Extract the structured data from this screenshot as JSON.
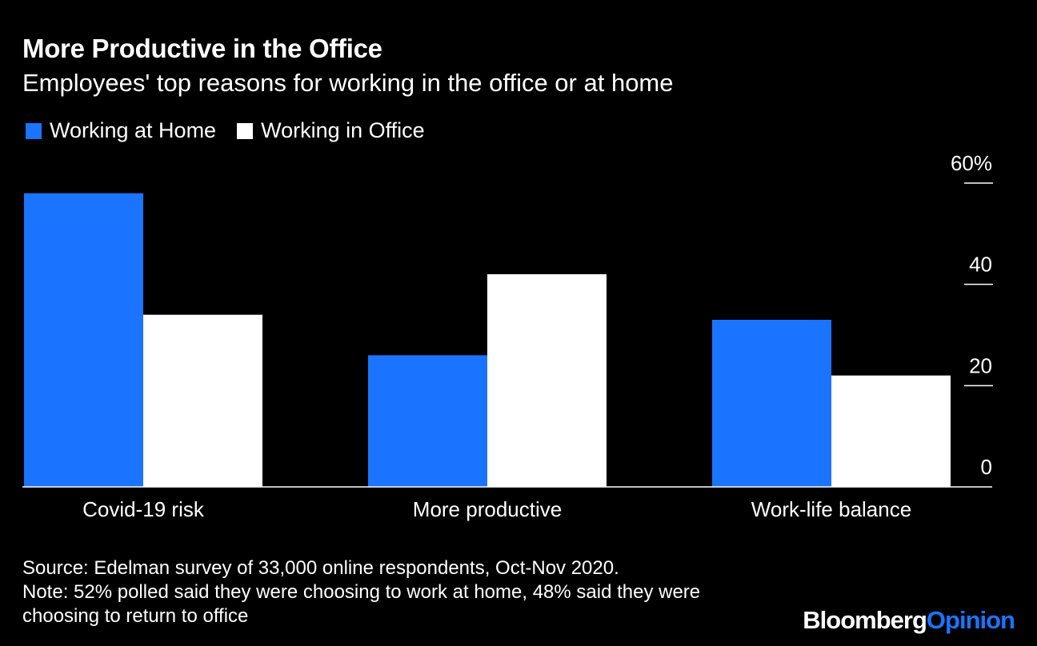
{
  "header": {
    "title": "More Productive in the Office",
    "subtitle": "Employees' top reasons for working in the office or at home"
  },
  "colors": {
    "background": "#000000",
    "home": "#1a74ff",
    "office": "#ffffff",
    "text": "#ffffff",
    "axis": "#ffffff"
  },
  "chart_data": {
    "type": "bar",
    "categories": [
      "Covid-19 risk",
      "More productive",
      "Work-life balance"
    ],
    "series": [
      {
        "name": "Working at Home",
        "color": "#1a74ff",
        "values": [
          58,
          26,
          33
        ]
      },
      {
        "name": "Working in Office",
        "color": "#ffffff",
        "values": [
          34,
          42,
          22
        ]
      }
    ],
    "ylim": [
      0,
      60
    ],
    "yticks": [
      {
        "value": 60,
        "label": "60%"
      },
      {
        "value": 40,
        "label": "40"
      },
      {
        "value": 20,
        "label": "20"
      },
      {
        "value": 0,
        "label": "0"
      }
    ],
    "legend_position": "top-left",
    "y_axis_side": "right",
    "grid": false
  },
  "footer": {
    "source": "Source: Edelman survey of 33,000 online respondents, Oct-Nov 2020.",
    "note_line1": "Note: 52% polled said they were choosing to work at home, 48% said they were",
    "note_line2": "choosing to return to office"
  },
  "brand": {
    "part1": "Bloomberg",
    "part2": "Opinion",
    "part2_color": "#1a74ff"
  }
}
